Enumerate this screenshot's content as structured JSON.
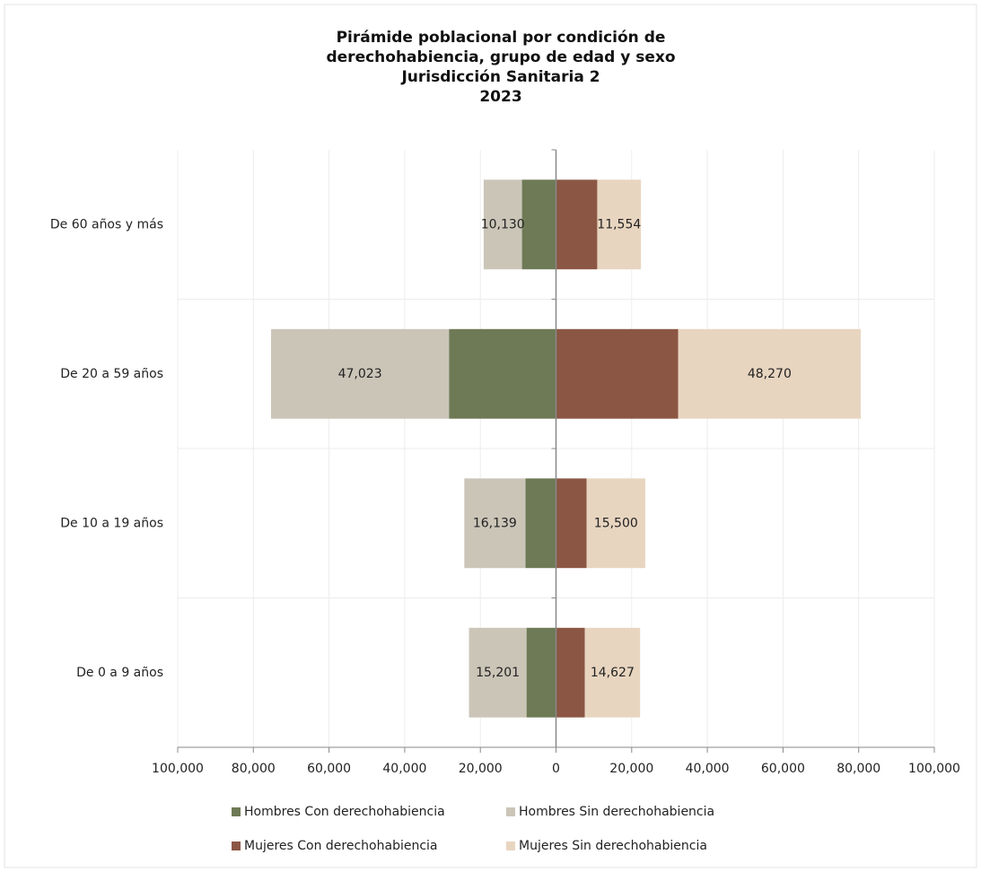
{
  "chart_data": {
    "type": "pyramid",
    "title": [
      "Pirámide poblacional por condición de",
      "derechohabiencia, grupo de edad y sexo",
      "Jurisdicción Sanitaria 2",
      "2023"
    ],
    "categories": [
      "De 60 años y más",
      "De 20 a 59 años",
      "De 10 a 19 años",
      "De 0 a 9 años"
    ],
    "series": [
      {
        "name": "Hombres Con derechohabiencia",
        "color": "#6e7a55",
        "values": [
          -9000,
          -28300,
          -8100,
          -7800
        ]
      },
      {
        "name": "Hombres Sin derechohabiencia",
        "color": "#cbc5b8",
        "values": [
          -10130,
          -47023,
          -16139,
          -15201
        ],
        "value_labels": [
          "10,130",
          "47,023",
          "16,139",
          "15,201"
        ]
      },
      {
        "name": "Mujeres Con derechohabiencia",
        "color": "#8b5744",
        "values": [
          10900,
          32300,
          8100,
          7600
        ]
      },
      {
        "name": "Mujeres Sin derechohabiencia",
        "color": "#e8d5c0",
        "values": [
          11554,
          48270,
          15500,
          14627
        ],
        "value_labels": [
          "11,554",
          "48,270",
          "15,500",
          "14,627"
        ]
      }
    ],
    "xlim": [
      -100000,
      100000
    ],
    "xticks": [
      {
        "value": -100000,
        "label": "100,000"
      },
      {
        "value": -80000,
        "label": "80,000"
      },
      {
        "value": -60000,
        "label": "60,000"
      },
      {
        "value": -40000,
        "label": "40,000"
      },
      {
        "value": -20000,
        "label": "20,000"
      },
      0,
      {
        "value": 20000,
        "label": "20,000"
      },
      {
        "value": 40000,
        "label": "40,000"
      },
      {
        "value": 60000,
        "label": "60,000"
      },
      {
        "value": 80000,
        "label": "80,000"
      },
      {
        "value": 100000,
        "label": "100,000"
      }
    ],
    "grid": true
  }
}
